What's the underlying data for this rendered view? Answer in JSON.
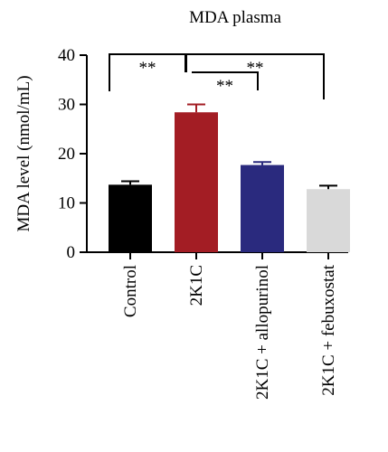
{
  "chart_data": {
    "type": "bar",
    "title": "MDA plasma",
    "xlabel": "",
    "ylabel": "MDA level (nmol/mL)",
    "ylim": [
      0,
      40
    ],
    "yticks": [
      0,
      10,
      20,
      30,
      40
    ],
    "grid": false,
    "categories": [
      "Control",
      "2K1C",
      "2K1C + allopurinol",
      "2K1C + febuxostat"
    ],
    "values": [
      13.7,
      28.4,
      17.7,
      12.8
    ],
    "errors": [
      0.7,
      1.6,
      0.6,
      0.7
    ],
    "colors": [
      "#000000",
      "#a31d24",
      "#2a2a7e",
      "#d9d9d9"
    ],
    "error_bar_colors": [
      "#000000",
      "#a31d24",
      "#2a2a7e",
      "#000000"
    ],
    "significance": [
      {
        "from": "Control",
        "to": "2K1C",
        "label": "**"
      },
      {
        "from": "2K1C",
        "to": "2K1C + allopurinol",
        "label": "**"
      },
      {
        "from": "2K1C",
        "to": "2K1C + febuxostat",
        "label": "**"
      }
    ]
  }
}
